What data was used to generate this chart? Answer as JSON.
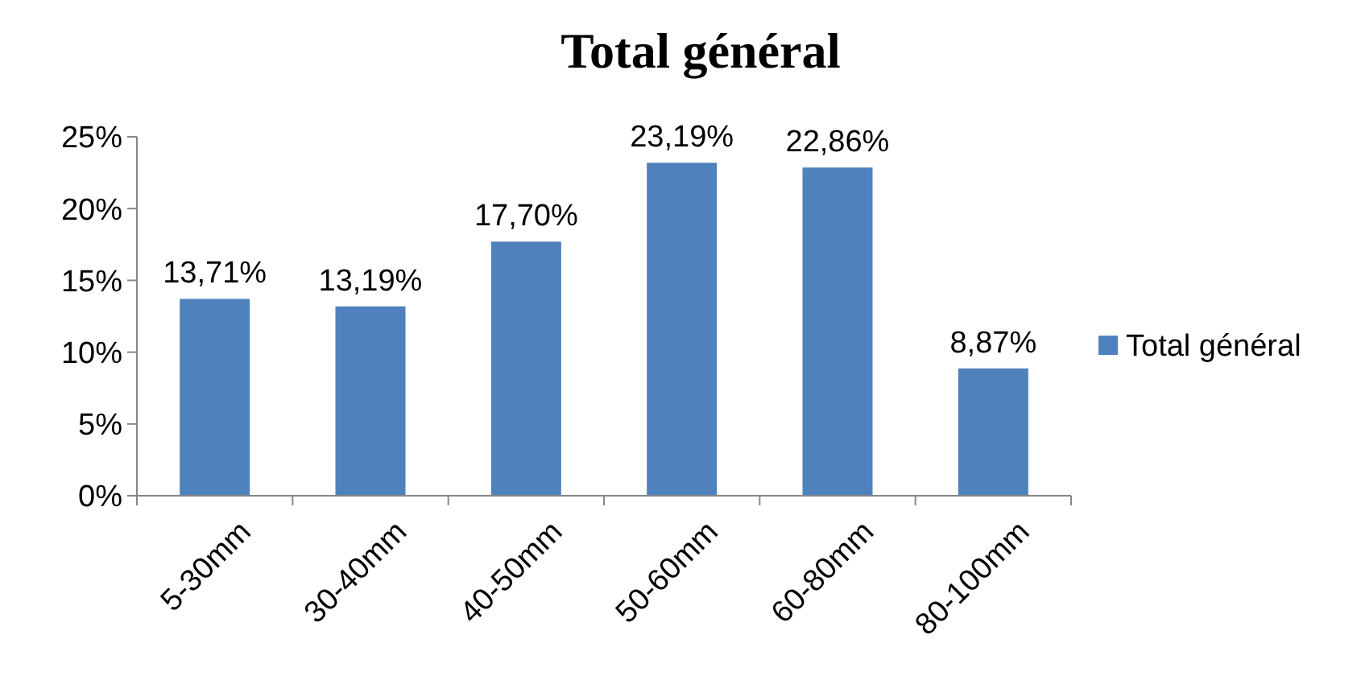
{
  "chart_data": {
    "type": "bar",
    "title": "Total général",
    "categories": [
      "5-30mm",
      "30-40mm",
      "40-50mm",
      "50-60mm",
      "60-80mm",
      "80-100mm"
    ],
    "series": [
      {
        "name": "Total général",
        "color": "#4f81bd",
        "values": [
          13.71,
          13.19,
          17.7,
          23.19,
          22.86,
          8.87
        ],
        "value_labels": [
          "13,71%",
          "13,19%",
          "17,70%",
          "23,19%",
          "22,86%",
          "8,87%"
        ]
      }
    ],
    "ylim": [
      0,
      25
    ],
    "yticks": [
      {
        "value": 0,
        "label": "0%"
      },
      {
        "value": 5,
        "label": "5%"
      },
      {
        "value": 10,
        "label": "10%"
      },
      {
        "value": 15,
        "label": "15%"
      },
      {
        "value": 20,
        "label": "20%"
      },
      {
        "value": 25,
        "label": "25%"
      }
    ],
    "grid": false,
    "legend": "right"
  }
}
